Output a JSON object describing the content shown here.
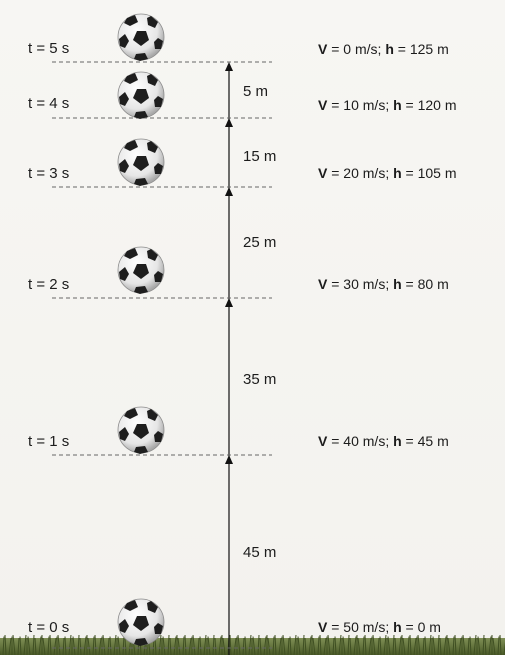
{
  "diagram": {
    "levels": [
      {
        "t_label": "t = 5 s",
        "distance": "",
        "v_key": "V",
        "v_val": " = 0 m/s; ",
        "h_key": "h",
        "h_val": " = 125 m"
      },
      {
        "t_label": "t = 4 s",
        "distance": "5 m",
        "v_key": "V",
        "v_val": " = 10 m/s; ",
        "h_key": "h",
        "h_val": " = 120 m"
      },
      {
        "t_label": "t = 3 s",
        "distance": "15 m",
        "v_key": "V",
        "v_val": " = 20 m/s; ",
        "h_key": "h",
        "h_val": " = 105 m"
      },
      {
        "t_label": "t = 2 s",
        "distance": "25 m",
        "v_key": "V",
        "v_val": " = 30 m/s; ",
        "h_key": "h",
        "h_val": " = 80 m"
      },
      {
        "t_label": "t = 1 s",
        "distance": "35 m",
        "v_key": "V",
        "v_val": " = 40 m/s; ",
        "h_key": "h",
        "h_val": " = 45 m"
      },
      {
        "t_label": "t = 0 s",
        "distance": "45 m",
        "v_key": "V",
        "v_val": " = 50 m/s; ",
        "h_key": "h",
        "h_val": " = 0 m"
      }
    ],
    "colors": {
      "ground": "#556b2f",
      "ball": "#f1f1f1",
      "patch": "#1e1e1e",
      "arrow": "#111111"
    }
  }
}
